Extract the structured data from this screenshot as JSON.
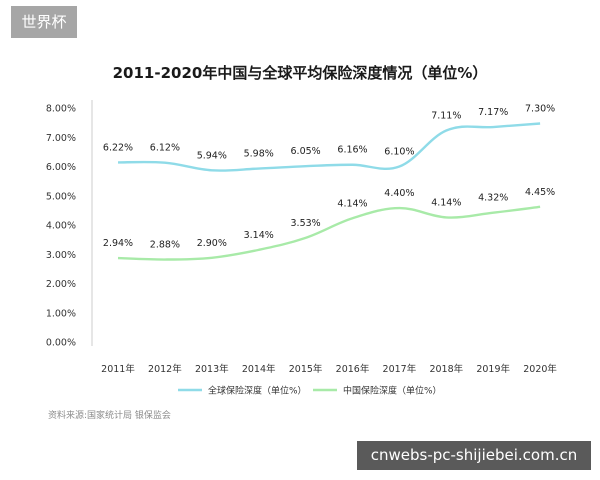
{
  "badge": "世界杯",
  "watermark": "cnwebs-pc-shijiebei.com.cn",
  "source": "资料来源:国家统计局 银保监会",
  "chart_data": {
    "type": "line",
    "title": "2011-2020年中国与全球平均保险深度情况（单位%）",
    "xlabel": "",
    "ylabel": "",
    "categories": [
      "2011年",
      "2012年",
      "2013年",
      "2014年",
      "2015年",
      "2016年",
      "2017年",
      "2018年",
      "2019年",
      "2020年"
    ],
    "y_ticks": [
      "0.00%",
      "1.00%",
      "2.00%",
      "3.00%",
      "4.00%",
      "5.00%",
      "6.00%",
      "7.00%",
      "8.00%"
    ],
    "ylim": [
      0,
      8
    ],
    "grid": false,
    "legend_position": "bottom",
    "series": [
      {
        "name": "全球保险深度（单位%）",
        "color": "#8fdbe8",
        "values": [
          6.22,
          6.12,
          5.94,
          5.98,
          6.05,
          6.16,
          6.1,
          7.11,
          7.17,
          7.3
        ],
        "curve": [
          6.14,
          6.13,
          5.87,
          5.93,
          6.01,
          6.06,
          6.0,
          7.23,
          7.35,
          7.47
        ],
        "labels": [
          "6.22%",
          "6.12%",
          "5.94%",
          "5.98%",
          "6.05%",
          "6.16%",
          "6.10%",
          "7.11%",
          "7.17%",
          "7.30%"
        ]
      },
      {
        "name": "中国保险深度（单位%）",
        "color": "#a8eaa8",
        "values": [
          2.94,
          2.88,
          2.9,
          3.14,
          3.53,
          4.14,
          4.4,
          4.14,
          4.32,
          4.45
        ],
        "curve": [
          2.87,
          2.82,
          2.88,
          3.15,
          3.56,
          4.23,
          4.58,
          4.26,
          4.42,
          4.62
        ],
        "labels": [
          "2.94%",
          "2.88%",
          "2.90%",
          "3.14%",
          "3.53%",
          "4.14%",
          "4.40%",
          "4.14%",
          "4.32%",
          "4.45%"
        ]
      }
    ]
  }
}
